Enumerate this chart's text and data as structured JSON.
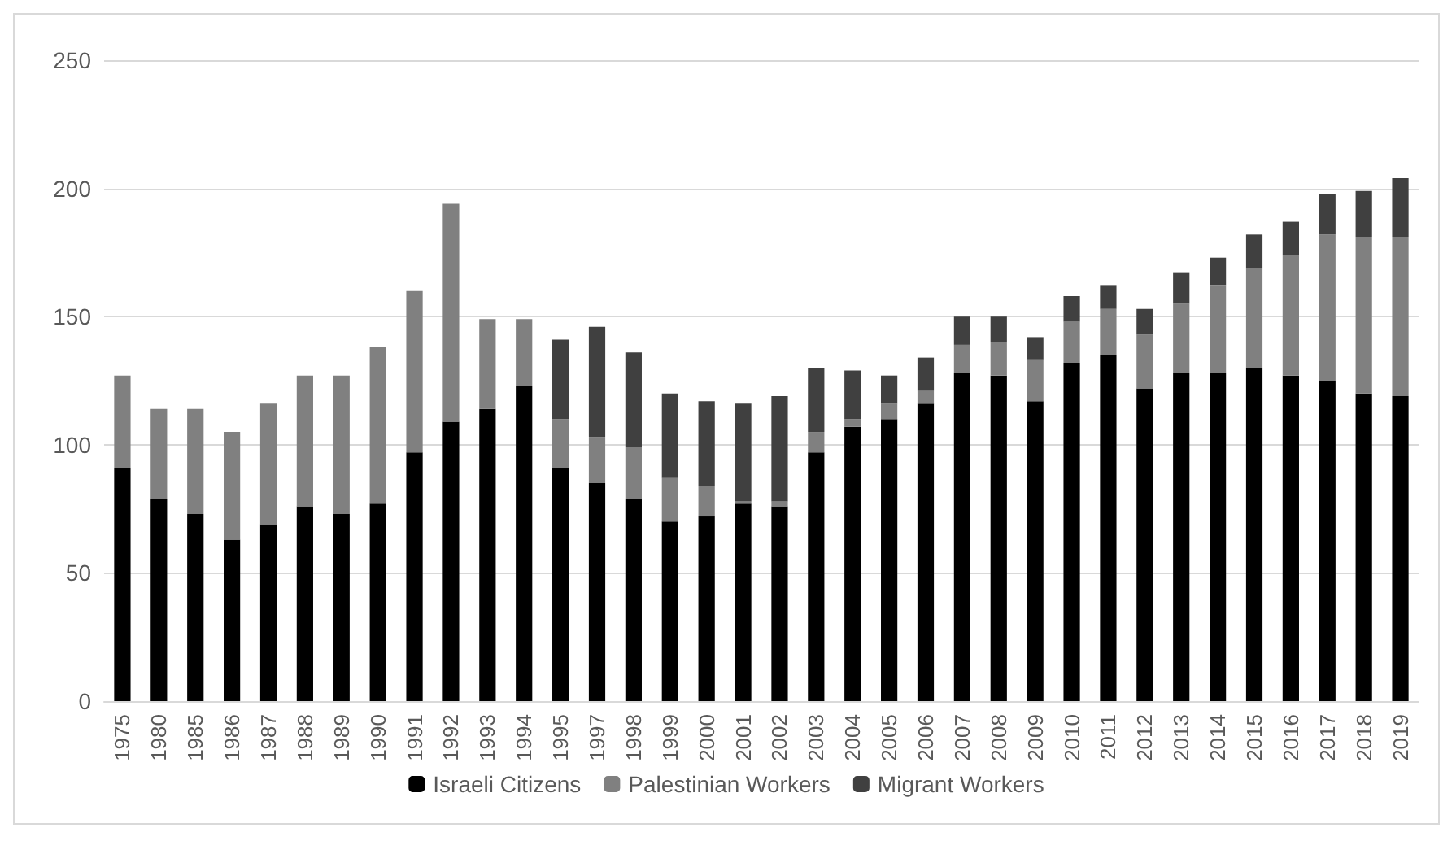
{
  "chart_data": {
    "type": "bar",
    "stacked": true,
    "categories": [
      "1975",
      "1980",
      "1985",
      "1986",
      "1987",
      "1988",
      "1989",
      "1990",
      "1991",
      "1992",
      "1993",
      "1994",
      "1995",
      "1997",
      "1998",
      "1999",
      "2000",
      "2001",
      "2002",
      "2003",
      "2004",
      "2005",
      "2006",
      "2007",
      "2008",
      "2009",
      "2010",
      "2011",
      "2012",
      "2013",
      "2014",
      "2015",
      "2016",
      "2017",
      "2018",
      "2019"
    ],
    "series": [
      {
        "name": "Israeli Citizens",
        "color": "#000000",
        "values": [
          91,
          79,
          73,
          63,
          69,
          76,
          73,
          77,
          97,
          109,
          114,
          123,
          91,
          85,
          79,
          70,
          72,
          77,
          76,
          97,
          107,
          110,
          116,
          128,
          127,
          117,
          132,
          135,
          122,
          128,
          128,
          130,
          127,
          125,
          120,
          119
        ]
      },
      {
        "name": "Palestinian Workers",
        "color": "#808080",
        "values": [
          36,
          35,
          41,
          42,
          47,
          51,
          54,
          61,
          63,
          85,
          35,
          26,
          19,
          18,
          20,
          17,
          12,
          1,
          2,
          8,
          3,
          6,
          5,
          11,
          13,
          16,
          16,
          18,
          21,
          27,
          34,
          39,
          47,
          57,
          61,
          62
        ]
      },
      {
        "name": "Migrant Workers",
        "color": "#404040",
        "values": [
          null,
          null,
          null,
          null,
          null,
          null,
          null,
          null,
          null,
          null,
          null,
          null,
          31,
          43,
          37,
          33,
          33,
          38,
          41,
          25,
          19,
          11,
          13,
          11,
          10,
          9,
          10,
          9,
          10,
          12,
          11,
          13,
          13,
          16,
          18,
          23
        ]
      }
    ],
    "ylim": [
      0,
      250
    ],
    "yticks": [
      0,
      50,
      100,
      150,
      200,
      250
    ],
    "grid": "y",
    "legend": "bottom"
  }
}
